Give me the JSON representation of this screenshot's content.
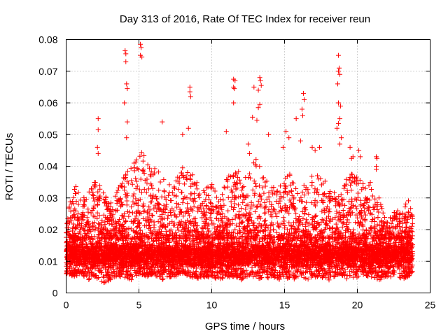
{
  "chart_data": {
    "type": "scatter",
    "title": "Day 313 of 2016, Rate Of TEC Index for receiver reun",
    "xlabel": "GPS time / hours",
    "ylabel": "ROTI / TECUs",
    "xlim": [
      0,
      25
    ],
    "ylim": [
      0,
      0.08
    ],
    "xticks": [
      0,
      5,
      10,
      15,
      20,
      25
    ],
    "yticks": [
      0,
      0.01,
      0.02,
      0.03,
      0.04,
      0.05,
      0.06,
      0.07,
      0.08
    ],
    "xtick_labels": [
      "0",
      "5",
      "10",
      "15",
      "20",
      "25"
    ],
    "ytick_labels": [
      "0",
      "0.01",
      "0.02",
      "0.03",
      "0.04",
      "0.05",
      "0.06",
      "0.07",
      "0.08"
    ],
    "grid": true,
    "marker": "+",
    "color": "#ff0000",
    "series": [
      {
        "name": "ROTI",
        "points": [
          [
            4.05,
            0.0765
          ],
          [
            4.1,
            0.0755
          ],
          [
            4.1,
            0.073
          ],
          [
            4.15,
            0.066
          ],
          [
            4.2,
            0.0645
          ],
          [
            4.0,
            0.06
          ],
          [
            4.2,
            0.054
          ],
          [
            4.15,
            0.049
          ],
          [
            5.1,
            0.0785
          ],
          [
            5.15,
            0.0775
          ],
          [
            5.1,
            0.075
          ],
          [
            5.2,
            0.0745
          ],
          [
            2.2,
            0.055
          ],
          [
            2.2,
            0.0515
          ],
          [
            2.15,
            0.046
          ],
          [
            2.2,
            0.044
          ],
          [
            6.6,
            0.054
          ],
          [
            8.5,
            0.065
          ],
          [
            8.5,
            0.0635
          ],
          [
            8.55,
            0.062
          ],
          [
            8.4,
            0.052
          ],
          [
            8.0,
            0.05
          ],
          [
            11.5,
            0.0675
          ],
          [
            11.6,
            0.067
          ],
          [
            11.5,
            0.065
          ],
          [
            11.55,
            0.0645
          ],
          [
            11.5,
            0.06
          ],
          [
            11.0,
            0.051
          ],
          [
            12.9,
            0.065
          ],
          [
            13.3,
            0.068
          ],
          [
            13.35,
            0.067
          ],
          [
            13.4,
            0.0655
          ],
          [
            13.2,
            0.064
          ],
          [
            13.3,
            0.0595
          ],
          [
            13.2,
            0.0585
          ],
          [
            12.8,
            0.0555
          ],
          [
            13.1,
            0.0545
          ],
          [
            12.6,
            0.044
          ],
          [
            12.5,
            0.047
          ],
          [
            13.9,
            0.05
          ],
          [
            16.3,
            0.063
          ],
          [
            16.35,
            0.061
          ],
          [
            16.2,
            0.058
          ],
          [
            16.25,
            0.056
          ],
          [
            15.8,
            0.055
          ],
          [
            15.1,
            0.051
          ],
          [
            15.3,
            0.049
          ],
          [
            16.1,
            0.048
          ],
          [
            18.7,
            0.075
          ],
          [
            18.75,
            0.071
          ],
          [
            18.7,
            0.07
          ],
          [
            18.8,
            0.069
          ],
          [
            18.65,
            0.066
          ],
          [
            18.7,
            0.06
          ],
          [
            18.85,
            0.059
          ],
          [
            18.8,
            0.055
          ],
          [
            18.7,
            0.0535
          ],
          [
            18.6,
            0.052
          ],
          [
            18.9,
            0.049
          ],
          [
            18.8,
            0.047
          ],
          [
            19.5,
            0.046
          ],
          [
            19.6,
            0.0425
          ],
          [
            19.7,
            0.043
          ],
          [
            20.1,
            0.045
          ],
          [
            20.2,
            0.043
          ],
          [
            21.3,
            0.043
          ],
          [
            21.35,
            0.0425
          ],
          [
            21.3,
            0.04
          ],
          [
            21.3,
            0.039
          ],
          [
            17.4,
            0.046
          ],
          [
            16.9,
            0.046
          ],
          [
            14.9,
            0.046
          ],
          [
            17.1,
            0.045
          ]
        ],
        "density_envelope": {
          "description": "approximate upper envelope of the dense cloud of points (hours, TECU)",
          "x": [
            0.0,
            0.5,
            1.0,
            1.5,
            2.0,
            2.5,
            3.0,
            3.5,
            4.0,
            4.5,
            5.0,
            5.5,
            6.0,
            6.5,
            7.0,
            7.5,
            8.0,
            8.5,
            9.0,
            9.5,
            10.0,
            10.5,
            11.0,
            11.5,
            12.0,
            12.5,
            13.0,
            13.5,
            14.0,
            14.5,
            15.0,
            15.5,
            16.0,
            16.5,
            17.0,
            17.5,
            18.0,
            18.5,
            19.0,
            19.5,
            20.0,
            20.5,
            21.0,
            21.5,
            22.0,
            22.5,
            23.0,
            23.5,
            23.8
          ],
          "upper": [
            0.022,
            0.037,
            0.03,
            0.032,
            0.036,
            0.034,
            0.028,
            0.033,
            0.038,
            0.04,
            0.046,
            0.043,
            0.04,
            0.038,
            0.034,
            0.035,
            0.04,
            0.038,
            0.036,
            0.033,
            0.035,
            0.03,
            0.037,
            0.038,
            0.039,
            0.037,
            0.043,
            0.04,
            0.036,
            0.034,
            0.038,
            0.04,
            0.033,
            0.035,
            0.04,
            0.037,
            0.034,
            0.032,
            0.036,
            0.038,
            0.037,
            0.034,
            0.036,
            0.03,
            0.022,
            0.027,
            0.026,
            0.03,
            0.024
          ],
          "lower": [
            0.006,
            0.005,
            0.006,
            0.004,
            0.005,
            0.003,
            0.004,
            0.005,
            0.005,
            0.004,
            0.006,
            0.005,
            0.006,
            0.004,
            0.005,
            0.005,
            0.006,
            0.005,
            0.004,
            0.005,
            0.005,
            0.004,
            0.005,
            0.005,
            0.004,
            0.005,
            0.005,
            0.004,
            0.005,
            0.004,
            0.005,
            0.004,
            0.005,
            0.004,
            0.005,
            0.005,
            0.004,
            0.005,
            0.005,
            0.004,
            0.005,
            0.005,
            0.005,
            0.004,
            0.005,
            0.005,
            0.004,
            0.005,
            0.006
          ],
          "core_range": [
            0.007,
            0.017
          ]
        }
      }
    ]
  }
}
